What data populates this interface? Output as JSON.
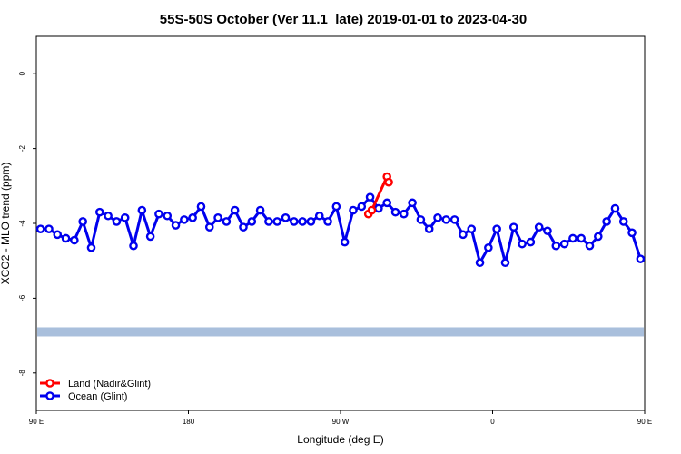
{
  "chart_data": {
    "type": "line",
    "title": "55S-50S October (Ver 11.1_late)   2019-01-01 to 2023-04-30",
    "xlabel": "Longitude (deg E)",
    "ylabel": "XCO2 - MLO trend (ppm)",
    "xlim": [
      90,
      450
    ],
    "ylim": [
      -9,
      1
    ],
    "x_ticks": [
      {
        "value": 90,
        "label": "90 E"
      },
      {
        "value": 180,
        "label": "180"
      },
      {
        "value": 270,
        "label": "90 W"
      },
      {
        "value": 360,
        "label": "0"
      },
      {
        "value": 450,
        "label": "90 E"
      }
    ],
    "y_ticks": [
      {
        "value": 0,
        "label": "0"
      },
      {
        "value": -2,
        "label": "-2"
      },
      {
        "value": -4,
        "label": "-4"
      },
      {
        "value": -6,
        "label": "-6"
      },
      {
        "value": -8,
        "label": "-8"
      }
    ],
    "legend_position": "bottom-left",
    "land_band": {
      "y_center": -6.9,
      "color": "#a9bfdc"
    },
    "series": [
      {
        "name": "Land (Nadir&Glint)",
        "color": "#ff0000",
        "x": [
          286.5,
          288.5,
          297.5,
          298.5
        ],
        "y": [
          -3.75,
          -3.65,
          -2.75,
          -2.9
        ]
      },
      {
        "name": "Ocean (Glint)",
        "color": "#0000ee",
        "x": [
          92.5,
          97.5,
          102.5,
          107.5,
          112.5,
          117.5,
          122.5,
          127.5,
          132.5,
          137.5,
          142.5,
          147.5,
          152.5,
          157.5,
          162.5,
          167.5,
          172.5,
          177.5,
          182.5,
          187.5,
          192.5,
          197.5,
          202.5,
          207.5,
          212.5,
          217.5,
          222.5,
          227.5,
          232.5,
          237.5,
          242.5,
          247.5,
          252.5,
          257.5,
          262.5,
          267.5,
          272.5,
          277.5,
          282.5,
          287.5,
          292.5,
          297.5,
          302.5,
          307.5,
          312.5,
          317.5,
          322.5,
          327.5,
          332.5,
          337.5,
          342.5,
          347.5,
          352.5,
          357.5,
          362.5,
          367.5,
          372.5,
          377.5,
          382.5,
          387.5,
          392.5,
          397.5,
          402.5,
          407.5,
          412.5,
          417.5,
          422.5,
          427.5,
          432.5,
          437.5,
          442.5,
          447.5
        ],
        "y": [
          -4.15,
          -4.15,
          -4.3,
          -4.4,
          -4.45,
          -3.95,
          -4.65,
          -3.7,
          -3.8,
          -3.95,
          -3.85,
          -4.6,
          -3.65,
          -4.35,
          -3.75,
          -3.8,
          -4.05,
          -3.9,
          -3.85,
          -3.55,
          -4.1,
          -3.85,
          -3.95,
          -3.65,
          -4.1,
          -3.95,
          -3.65,
          -3.95,
          -3.95,
          -3.85,
          -3.95,
          -3.95,
          -3.95,
          -3.8,
          -3.95,
          -3.55,
          -4.5,
          -3.65,
          -3.55,
          -3.3,
          -3.6,
          -3.45,
          -3.7,
          -3.75,
          -3.45,
          -3.9,
          -4.15,
          -3.85,
          -3.9,
          -3.9,
          -4.3,
          -4.15,
          -5.05,
          -4.65,
          -4.15,
          -5.05,
          -4.1,
          -4.55,
          -4.5,
          -4.1,
          -4.2,
          -4.6,
          -4.55,
          -4.4,
          -4.4,
          -4.6,
          -4.35,
          -3.95,
          -3.6,
          -3.95,
          -4.25,
          -4.95
        ]
      }
    ]
  }
}
